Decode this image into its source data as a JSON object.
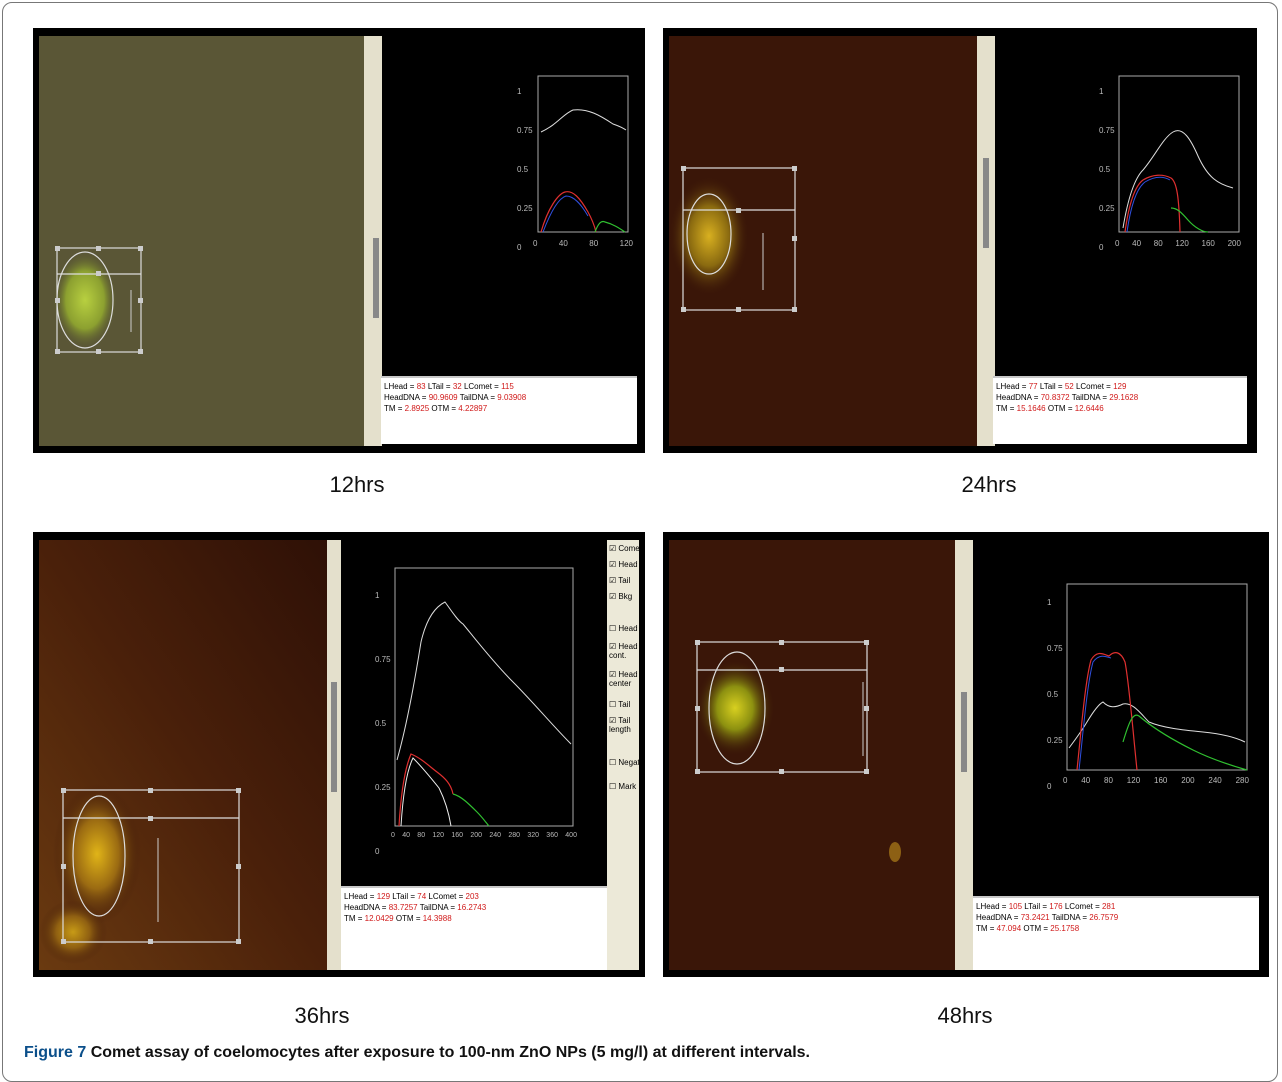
{
  "caption": {
    "figure_label": "Figure 7",
    "text": "Comet assay of coelomocytes after exposure to 100-nm ZnO NPs (5 mg/l) at different intervals."
  },
  "panels": [
    {
      "label": "12hrs",
      "stats": {
        "lhead": "83",
        "ltail": "32",
        "lcomet": "115",
        "headdna": "90.9609",
        "taildna": "9.03908",
        "tm": "2.8925",
        "otm": "4.22897"
      },
      "ticks_y": [
        "1",
        "0.75",
        "0.5",
        "0.25",
        "0"
      ],
      "ticks_x": [
        "0",
        "40",
        "80",
        "120"
      ]
    },
    {
      "label": "24hrs",
      "stats": {
        "lhead": "77",
        "ltail": "52",
        "lcomet": "129",
        "headdna": "70.8372",
        "taildna": "29.1628",
        "tm": "15.1646",
        "otm": "12.6446"
      },
      "ticks_y": [
        "1",
        "0.75",
        "0.5",
        "0.25",
        "0"
      ],
      "ticks_x": [
        "0",
        "40",
        "80",
        "120",
        "160",
        "200"
      ]
    },
    {
      "label": "36hrs",
      "stats": {
        "lhead": "129",
        "ltail": "74",
        "lcomet": "203",
        "headdna": "83.7257",
        "taildna": "16.2743",
        "tm": "12.0429",
        "otm": "14.3988"
      },
      "ticks_y": [
        "1",
        "0.75",
        "0.5",
        "0.25",
        "0"
      ],
      "ticks_x": [
        "0",
        "40",
        "80",
        "120",
        "160",
        "200",
        "240",
        "280",
        "320",
        "360",
        "400"
      ],
      "checkboxes": [
        "Comet",
        "Head",
        "Tail",
        "Bkg",
        "Head",
        "Head cont.",
        "Head center",
        "Tail",
        "Tail length",
        "Negat.",
        "Mark"
      ]
    },
    {
      "label": "48hrs",
      "stats": {
        "lhead": "105",
        "ltail": "176",
        "lcomet": "281",
        "headdna": "73.2421",
        "taildna": "26.7579",
        "tm": "47.094",
        "otm": "25.1758"
      },
      "ticks_y": [
        "1",
        "0.75",
        "0.5",
        "0.25",
        "0"
      ],
      "ticks_x": [
        "0",
        "40",
        "80",
        "120",
        "160",
        "200",
        "240",
        "280"
      ]
    }
  ],
  "colors": {
    "caption_label": "#0b4f8a",
    "value_red": "#d01818"
  }
}
